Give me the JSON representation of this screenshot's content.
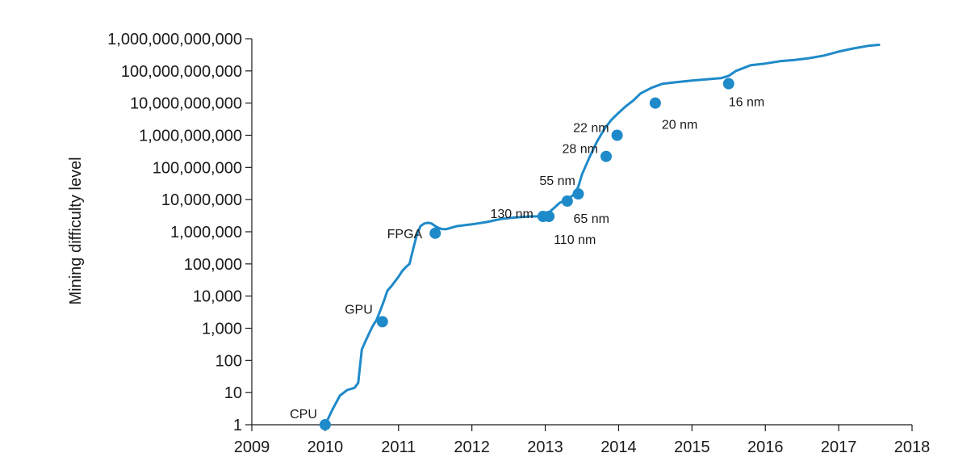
{
  "chart_data": {
    "type": "line",
    "title": "",
    "xlabel": "",
    "ylabel": "Mining difficulty level",
    "y_scale": "log10",
    "xlim": [
      2009,
      2018
    ],
    "ylim": [
      1,
      1000000000000
    ],
    "x_ticks": [
      2009,
      2010,
      2011,
      2012,
      2013,
      2014,
      2015,
      2016,
      2017,
      2018
    ],
    "x_tick_labels": [
      "2009",
      "2010",
      "2011",
      "2012",
      "2013",
      "2014",
      "2015",
      "2016",
      "2017",
      "2018"
    ],
    "y_ticks": [
      1,
      10,
      100,
      1000,
      10000,
      100000,
      1000000,
      10000000,
      100000000,
      1000000000,
      10000000000,
      100000000000,
      1000000000000
    ],
    "y_tick_labels": [
      "1",
      "10",
      "100",
      "1,000",
      "10,000",
      "100,000",
      "1,000,000",
      "10,000,000",
      "100,000,000",
      "1,000,000,000",
      "10,000,000,000",
      "100,000,000,000",
      "1,000,000,000,000"
    ],
    "grid": false,
    "line_color": "#1f8ac9",
    "series": [
      {
        "x": [
          2010.0,
          2010.1,
          2010.2,
          2010.3,
          2010.4,
          2010.45,
          2010.5,
          2010.55,
          2010.6,
          2010.65,
          2010.7,
          2010.75,
          2010.8,
          2010.85,
          2010.9,
          2011.0,
          2011.05,
          2011.1,
          2011.15,
          2011.2,
          2011.25,
          2011.3,
          2011.35,
          2011.4,
          2011.45,
          2011.5,
          2011.55,
          2011.6,
          2011.65,
          2011.7,
          2011.75,
          2011.8,
          2011.9,
          2012.0,
          2012.2,
          2012.4,
          2012.6,
          2012.8,
          2012.97,
          2013.0,
          2013.1,
          2013.2,
          2013.3,
          2013.4,
          2013.45,
          2013.5,
          2013.6,
          2013.7,
          2013.8,
          2013.9,
          2014.0,
          2014.1,
          2014.2,
          2014.3,
          2014.45,
          2014.6,
          2014.8,
          2015.0,
          2015.2,
          2015.4,
          2015.5,
          2015.6,
          2015.8,
          2016.0,
          2016.2,
          2016.4,
          2016.6,
          2016.8,
          2017.0,
          2017.2,
          2017.4,
          2017.55
        ],
        "y": [
          1,
          3,
          8,
          12,
          14,
          20,
          220,
          400,
          700,
          1200,
          1800,
          3500,
          7000,
          15000,
          20000,
          40000,
          60000,
          80000,
          100000,
          300000,
          800000,
          1500000,
          1800000,
          1900000,
          1800000,
          1500000,
          1300000,
          1200000,
          1200000,
          1300000,
          1400000,
          1500000,
          1600000,
          1700000,
          2000000,
          2500000,
          2800000,
          3000000,
          3000000,
          3200000,
          5000000,
          8000000,
          10000000,
          15000000,
          25000000,
          60000000,
          200000000,
          600000000,
          1500000000,
          3000000000,
          5000000000,
          8000000000,
          12000000000,
          20000000000,
          30000000000,
          40000000000,
          45000000000,
          50000000000,
          55000000000,
          60000000000,
          70000000000,
          100000000000,
          150000000000,
          170000000000,
          200000000000,
          220000000000,
          250000000000,
          300000000000,
          400000000000,
          500000000000,
          600000000000,
          650000000000
        ]
      }
    ],
    "markers": [
      {
        "label": "CPU",
        "x": 2010.0,
        "y": 1
      },
      {
        "label": "GPU",
        "x": 2010.78,
        "y": 1600
      },
      {
        "label": "FPGA",
        "x": 2011.5,
        "y": 900000
      },
      {
        "label": "130 nm",
        "x": 2012.97,
        "y": 3000000
      },
      {
        "label": "110 nm",
        "x": 2013.05,
        "y": 3000000
      },
      {
        "label": "55 nm",
        "x": 2013.3,
        "y": 9000000
      },
      {
        "label": "65 nm",
        "x": 2013.45,
        "y": 15000000
      },
      {
        "label": "28 nm",
        "x": 2013.83,
        "y": 220000000
      },
      {
        "label": "22 nm",
        "x": 2013.98,
        "y": 1000000000
      },
      {
        "label": "20 nm",
        "x": 2014.5,
        "y": 10000000000
      },
      {
        "label": "16 nm",
        "x": 2015.5,
        "y": 40000000000
      }
    ]
  }
}
